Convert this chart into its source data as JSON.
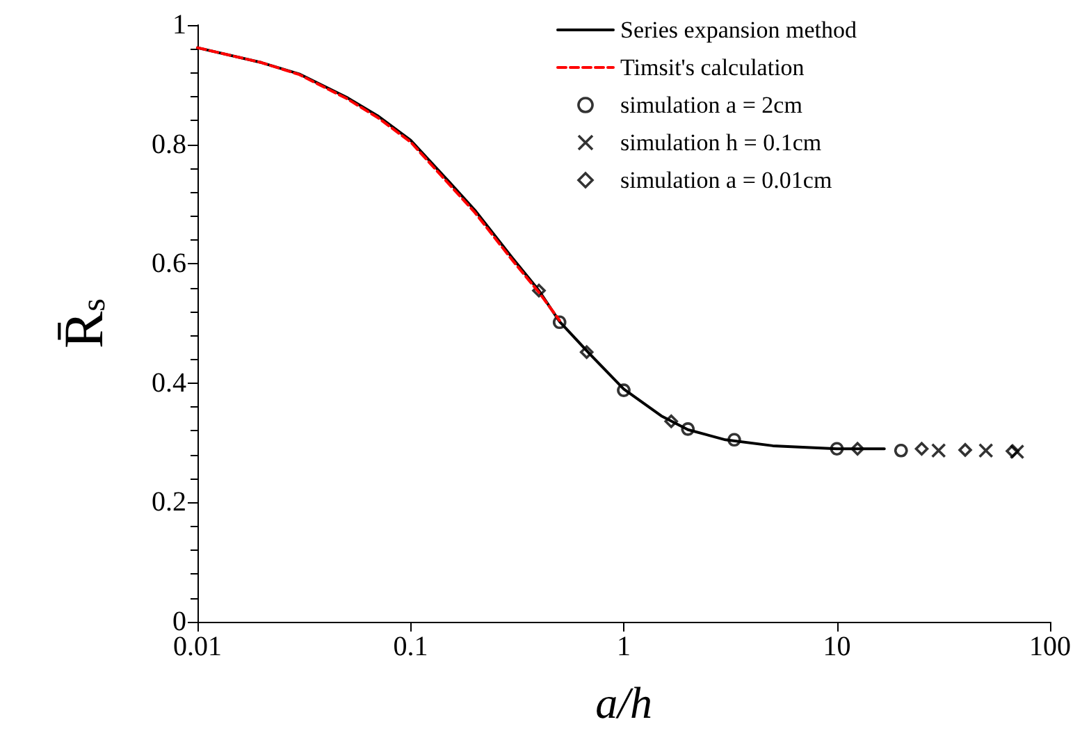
{
  "chart_data": {
    "type": "line",
    "xlabel": "a/h",
    "ylabel": "R̄$_{s}$",
    "log": "x",
    "xlim": [
      0.01,
      100
    ],
    "xticks": [
      0.01,
      0.1,
      1,
      10,
      100
    ],
    "ylim": [
      0,
      1
    ],
    "yticks": [
      0,
      0.2,
      0.4,
      0.6,
      0.8,
      1
    ],
    "grid": false,
    "legend": "top right",
    "series": [
      {
        "name": "Series expansion method",
        "color": "#000000",
        "line_style": "solid",
        "x": [
          0.01,
          0.02,
          0.03,
          0.05,
          0.07,
          0.1,
          0.15,
          0.2,
          0.3,
          0.4,
          0.5,
          0.7,
          1,
          1.5,
          2,
          3,
          5,
          10,
          16.7
        ],
        "values": [
          0.962,
          0.937,
          0.918,
          0.879,
          0.848,
          0.807,
          0.739,
          0.69,
          0.61,
          0.555,
          0.503,
          0.447,
          0.39,
          0.345,
          0.322,
          0.305,
          0.295,
          0.29,
          0.29
        ]
      },
      {
        "name": "Timsit's calculation",
        "color": "#ff0000",
        "line_style": "dashed",
        "x": [
          0.01,
          0.02,
          0.03,
          0.05,
          0.07,
          0.1,
          0.15,
          0.2,
          0.3,
          0.4,
          0.5
        ],
        "values": [
          0.962,
          0.937,
          0.917,
          0.877,
          0.845,
          0.804,
          0.735,
          0.686,
          0.606,
          0.552,
          0.505
        ]
      },
      {
        "name": "simulation a = 2cm",
        "type": "scatter",
        "marker": "circle",
        "color": "#000000",
        "x": [
          0.5,
          1,
          2,
          3.3,
          10,
          20
        ],
        "values": [
          0.502,
          0.388,
          0.323,
          0.305,
          0.29,
          0.287
        ]
      },
      {
        "name": "simulation h = 0.1cm",
        "type": "scatter",
        "marker": "cross",
        "color": "#000000",
        "x": [
          30,
          50,
          70
        ],
        "values": [
          0.287,
          0.287,
          0.285
        ]
      },
      {
        "name": "simulation a = 0.01cm",
        "type": "scatter",
        "marker": "diamond",
        "color": "#000000",
        "x": [
          0.4,
          0.67,
          1.67,
          12.5,
          25,
          40,
          66.7
        ],
        "values": [
          0.555,
          0.452,
          0.336,
          0.29,
          0.29,
          0.288,
          0.286
        ]
      }
    ]
  }
}
